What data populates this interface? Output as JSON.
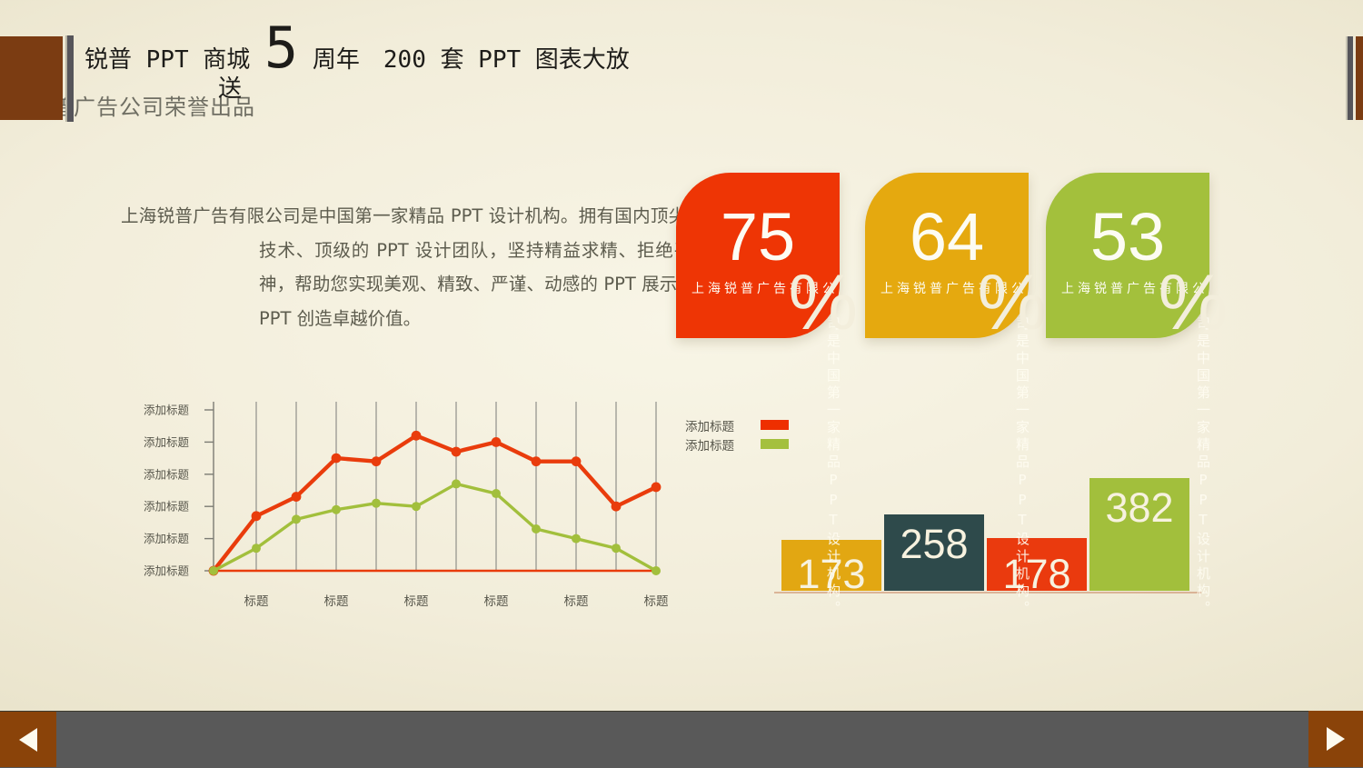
{
  "header": {
    "title_prefix": "锐普 PPT 商城 ",
    "title_big": "5",
    "title_suffix": " 周年　200 套 PPT 图表大放",
    "title_wrap": "送",
    "subtitle": "普广告公司荣誉出品"
  },
  "intro": {
    "text": "上海锐普广告有限公司是中国第一家精品 PPT 设计机构。拥有国内顶尖的 PPT 制作技术、顶级的 PPT 设计团队，坚持精益求精、拒绝平庸的做事精神，帮助您实现美观、精致、严谨、动感的 PPT 展示效果，让您的 PPT 创造卓越价值。"
  },
  "badges": [
    {
      "value": "75",
      "unit": "%",
      "label": "上海锐普广告有限公",
      "vertical_text": "司是中国第一家精品PPT设计机构。",
      "color": "#ee3505"
    },
    {
      "value": "64",
      "unit": "%",
      "label": "上海锐普广告有限公",
      "vertical_text": "司是中国第一家精品PPT设计机构。",
      "color": "#e5a90f"
    },
    {
      "value": "53",
      "unit": "%",
      "label": "上海锐普广告有限公",
      "vertical_text": "司是中国第一家精品PPT设计机构。",
      "color": "#a3c03c"
    }
  ],
  "chart_data": [
    {
      "type": "line",
      "title": "",
      "y_axis_labels": [
        "添加标题",
        "添加标题",
        "添加标题",
        "添加标题",
        "添加标题",
        "添加标题"
      ],
      "x_labels": [
        "标题",
        "标题",
        "标题",
        "标题",
        "标题",
        "标题"
      ],
      "legend": [
        {
          "label": "添加标题",
          "color": "#ee2f00"
        },
        {
          "label": "添加标题",
          "color": "#a4c03e"
        }
      ],
      "series": [
        {
          "name": "添加标题",
          "color": "#e93c0c",
          "values": [
            0,
            1.7,
            2.3,
            3.5,
            3.4,
            4.2,
            3.7,
            4.0,
            3.4,
            3.4,
            2.0,
            2.6
          ]
        },
        {
          "name": "添加标题",
          "color": "#a2bf3c",
          "values": [
            0,
            0.7,
            1.6,
            1.9,
            2.1,
            2.0,
            2.7,
            2.4,
            1.3,
            1.0,
            0.7,
            0
          ]
        }
      ],
      "ylim": [
        0,
        5.5
      ],
      "grid": "vertical-gridlines",
      "baseline_color": "#e93c0c",
      "legend_position": "right-top"
    },
    {
      "type": "bar",
      "values": [
        173,
        258,
        178,
        382
      ],
      "colors": [
        "#e2a712",
        "#2e4a4b",
        "#ea3a0e",
        "#a2bf3c"
      ],
      "label_color": "#f7f2df",
      "ylim": [
        0,
        420
      ]
    }
  ],
  "nav": {
    "prev_icon": "left-triangle",
    "next_icon": "right-triangle"
  },
  "colors": {
    "background": "#f1ecd8",
    "accent_red": "#ee3505",
    "accent_yellow": "#e5a90f",
    "accent_green": "#a3c03c",
    "accent_teal": "#2e4a4b",
    "header_brown": "#7b3c12",
    "nav_brown": "#8a4309",
    "nav_gray": "#595959"
  }
}
